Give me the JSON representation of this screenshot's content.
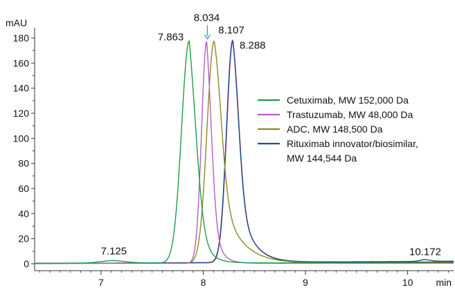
{
  "chart_data": {
    "type": "line",
    "title": "",
    "xlabel": "min",
    "ylabel": "mAU",
    "xlim": [
      6.35,
      10.45
    ],
    "ylim": [
      -5,
      185
    ],
    "x_ticks": [
      7,
      8,
      9,
      10
    ],
    "y_ticks": [
      0,
      20,
      40,
      60,
      80,
      100,
      120,
      140,
      160,
      180
    ],
    "grid": false,
    "legend_position": "right",
    "series": [
      {
        "name": "Cetuximab, MW 152,000 Da",
        "color": "#1a9e4a",
        "peaks": [
          {
            "center": 7.863,
            "height": 177,
            "width_left": 0.075,
            "tail_right": 0.09
          },
          {
            "center": 7.125,
            "height": 2,
            "width_left": 0.12,
            "tail_right": 0.15
          }
        ],
        "baseline_points": [
          [
            6.35,
            0.5
          ],
          [
            10.45,
            0.8
          ]
        ]
      },
      {
        "name": "Trastuzumab, MW 48,000 Da",
        "color": "#b45cc4",
        "peaks": [
          {
            "center": 8.034,
            "height": 177,
            "width_left": 0.05,
            "tail_right": 0.07
          }
        ],
        "baseline_points": [
          [
            6.35,
            0.3
          ],
          [
            10.45,
            0.5
          ]
        ]
      },
      {
        "name": "ADC, MW 148,500 Da",
        "color": "#8b8a1f",
        "peaks": [
          {
            "center": 8.107,
            "height": 177,
            "width_left": 0.07,
            "tail_right": 0.18
          }
        ],
        "baseline_points": [
          [
            6.35,
            0.3
          ],
          [
            10.45,
            0.6
          ]
        ]
      },
      {
        "name": "Rituximab innovator/biosimilar,",
        "name_line2": "MW 144,544 Da",
        "color": "#1c4f8a",
        "peaks": [
          {
            "center": 8.288,
            "height": 177,
            "width_left": 0.06,
            "tail_right": 0.13
          },
          {
            "center": 10.172,
            "height": 1.5,
            "width_left": 0.05,
            "tail_right": 0.08
          }
        ],
        "baseline_points": [
          [
            6.35,
            0.2
          ],
          [
            10.45,
            2.0
          ]
        ]
      },
      {
        "name": "",
        "color": "#d8222e",
        "peaks": [
          {
            "center": 8.29,
            "height": 177,
            "width_left": 0.06,
            "tail_right": 0.13
          }
        ],
        "baseline_points": [
          [
            6.35,
            0.2
          ],
          [
            10.45,
            1.5
          ]
        ]
      }
    ],
    "peak_labels": [
      {
        "text": "7.863",
        "x": 7.863,
        "y": 177,
        "side": "left"
      },
      {
        "text": "8.034",
        "x": 8.034,
        "y": 177,
        "side": "above",
        "arrow": true,
        "arrow_color": "#1e9fd8"
      },
      {
        "text": "8.107",
        "x": 8.107,
        "y": 177,
        "side": "right-up"
      },
      {
        "text": "8.288",
        "x": 8.288,
        "y": 177,
        "side": "right"
      },
      {
        "text": "7.125",
        "x": 7.125,
        "y": 2,
        "side": "above"
      },
      {
        "text": "10.172",
        "x": 10.172,
        "y": 1.5,
        "side": "above"
      }
    ]
  }
}
